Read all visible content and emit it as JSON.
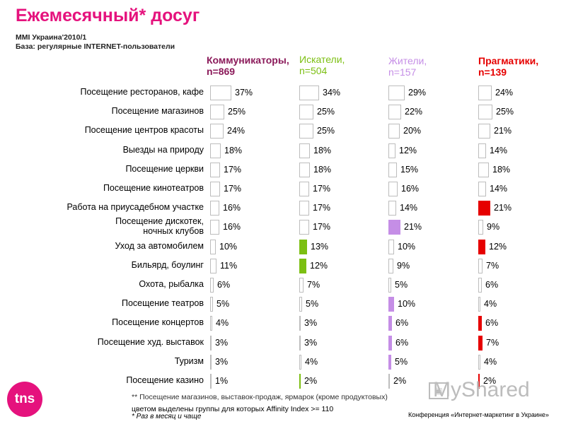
{
  "title": "Ежемесячный* досуг",
  "subtitle1": "MMI Украина'2010/1",
  "subtitle2": "База: регулярные INTERNET-пользователи",
  "note_asterisk": "** Посещение магазинов, выставок-продаж, ярмарок (кроме продуктовых)",
  "note_highlight": "цветом выделены группы для которых Affinity Index >= 110",
  "note_monthly": "* Раз в месяц и чаще",
  "conference": "Конференция «Интернет-маркетинг в Украине»",
  "logo_text": "tns",
  "watermark_text": "MyShared",
  "colors": {
    "title": "#e5127d",
    "g1": "#8b1a5a",
    "g2": "#7cbf12",
    "g3": "#c58ee6",
    "g4": "#e60000",
    "bar_border": "#bdbdbd"
  },
  "chart_data": {
    "type": "bar",
    "title": "Ежемесячный* досуг",
    "unit": "%",
    "categories": [
      "Посещение ресторанов, кафе",
      "Посещение магазинов",
      "Посещение центров красоты",
      "Выезды на природу",
      "Посещение церкви",
      "Посещение кинотеатров",
      "Работа на приусадебном участке",
      "Посещение дискотек, ночных клубов",
      "Уход за автомобилем",
      "Бильярд, боулинг",
      "Охота, рыбалка",
      "Посещение театров",
      "Посещение концертов",
      "Посещение худ. выставок",
      "Туризм",
      "Посещение казино"
    ],
    "series": [
      {
        "name": "Коммуникаторы,",
        "n": "n=869",
        "color": "#8b1a5a",
        "values": [
          37,
          25,
          24,
          18,
          17,
          17,
          16,
          16,
          10,
          11,
          6,
          5,
          4,
          3,
          3,
          1
        ],
        "highlight": [
          false,
          false,
          false,
          false,
          false,
          false,
          false,
          false,
          false,
          false,
          false,
          false,
          false,
          false,
          false,
          false
        ]
      },
      {
        "name": "Искатели,",
        "n": "n=504",
        "color": "#7cbf12",
        "values": [
          34,
          25,
          25,
          18,
          18,
          17,
          17,
          17,
          13,
          12,
          7,
          5,
          3,
          3,
          4,
          2
        ],
        "highlight": [
          false,
          false,
          false,
          false,
          false,
          false,
          false,
          false,
          true,
          true,
          false,
          false,
          false,
          false,
          false,
          true
        ]
      },
      {
        "name": "Жители,",
        "n": "n=157",
        "color": "#c58ee6",
        "values": [
          29,
          22,
          20,
          12,
          15,
          16,
          14,
          21,
          10,
          9,
          5,
          10,
          6,
          6,
          5,
          2
        ],
        "highlight": [
          false,
          false,
          false,
          false,
          false,
          false,
          false,
          true,
          false,
          false,
          false,
          true,
          true,
          true,
          true,
          false
        ]
      },
      {
        "name": "Прагматики,",
        "n": "n=139",
        "color": "#e60000",
        "values": [
          24,
          25,
          21,
          14,
          18,
          14,
          21,
          9,
          12,
          7,
          6,
          4,
          6,
          7,
          4,
          2
        ],
        "highlight": [
          false,
          false,
          false,
          false,
          false,
          false,
          true,
          false,
          true,
          false,
          false,
          false,
          true,
          true,
          false,
          true
        ]
      }
    ]
  }
}
